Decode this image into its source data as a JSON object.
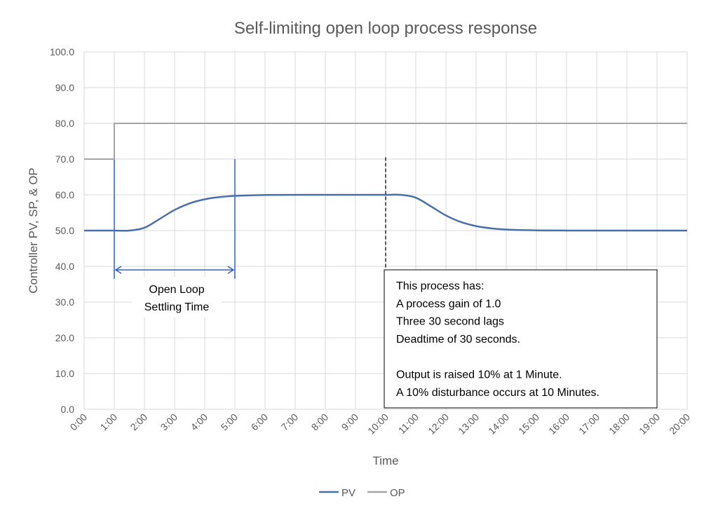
{
  "chart_data": {
    "type": "line",
    "title": "Self-limiting open loop process response",
    "xlabel": "Time",
    "ylabel": "Controller PV, SP, & OP",
    "xlim_minutes": [
      0,
      20
    ],
    "ylim": [
      0,
      100
    ],
    "grid": true,
    "legend_position": "bottom",
    "x_tick_labels": [
      "0:00",
      "1:00",
      "2:00",
      "3:00",
      "4:00",
      "5:00",
      "6:00",
      "7:00",
      "8:00",
      "9:00",
      "10:00",
      "11:00",
      "12:00",
      "13:00",
      "14:00",
      "15:00",
      "16:00",
      "17:00",
      "18:00",
      "19:00",
      "20:00"
    ],
    "y_tick_labels": [
      "0.0",
      "10.0",
      "20.0",
      "30.0",
      "40.0",
      "50.0",
      "60.0",
      "70.0",
      "80.0",
      "90.0",
      "100.0"
    ],
    "x_minutes": [
      0,
      0.5,
      1,
      1.5,
      2,
      2.5,
      3,
      3.5,
      4,
      4.5,
      5,
      5.5,
      6,
      6.5,
      7,
      7.5,
      8,
      8.5,
      9,
      9.5,
      10,
      10.5,
      11,
      11.5,
      12,
      12.5,
      13,
      13.5,
      14,
      14.5,
      15,
      15.5,
      16,
      16.5,
      17,
      17.5,
      18,
      18.5,
      19,
      19.5,
      20
    ],
    "series": [
      {
        "name": "PV",
        "color": "#4a6fa8",
        "values": [
          50,
          50,
          50,
          50,
          50.8,
          53.23,
          55.77,
          57.62,
          58.75,
          59.38,
          59.7,
          59.86,
          59.94,
          59.97,
          59.99,
          60,
          60,
          60,
          60,
          60,
          60,
          60,
          59.2,
          56.77,
          54.23,
          52.38,
          51.25,
          50.62,
          50.3,
          50.14,
          50.06,
          50.03,
          50.01,
          50,
          50,
          50,
          50,
          50,
          50,
          50,
          50
        ]
      },
      {
        "name": "OP",
        "color": "#a5a5a5",
        "step_points": [
          [
            0,
            70
          ],
          [
            1,
            70
          ],
          [
            1,
            80
          ],
          [
            20,
            80
          ]
        ]
      }
    ],
    "annotations": {
      "settling_start": "1:00",
      "settling_end": "5:00",
      "settling_label_line1": "Open Loop",
      "settling_label_line2": "Settling Time",
      "disturbance_time": "10:00",
      "annotation_color": "#2f5fc4",
      "note_lines": [
        "This process has:",
        "A process gain of 1.0",
        "Three 30 second lags",
        "Deadtime of 30 seconds.",
        "",
        "Output is raised 10% at 1 Minute.",
        "A 10% disturbance occurs at 10 Minutes."
      ]
    }
  }
}
